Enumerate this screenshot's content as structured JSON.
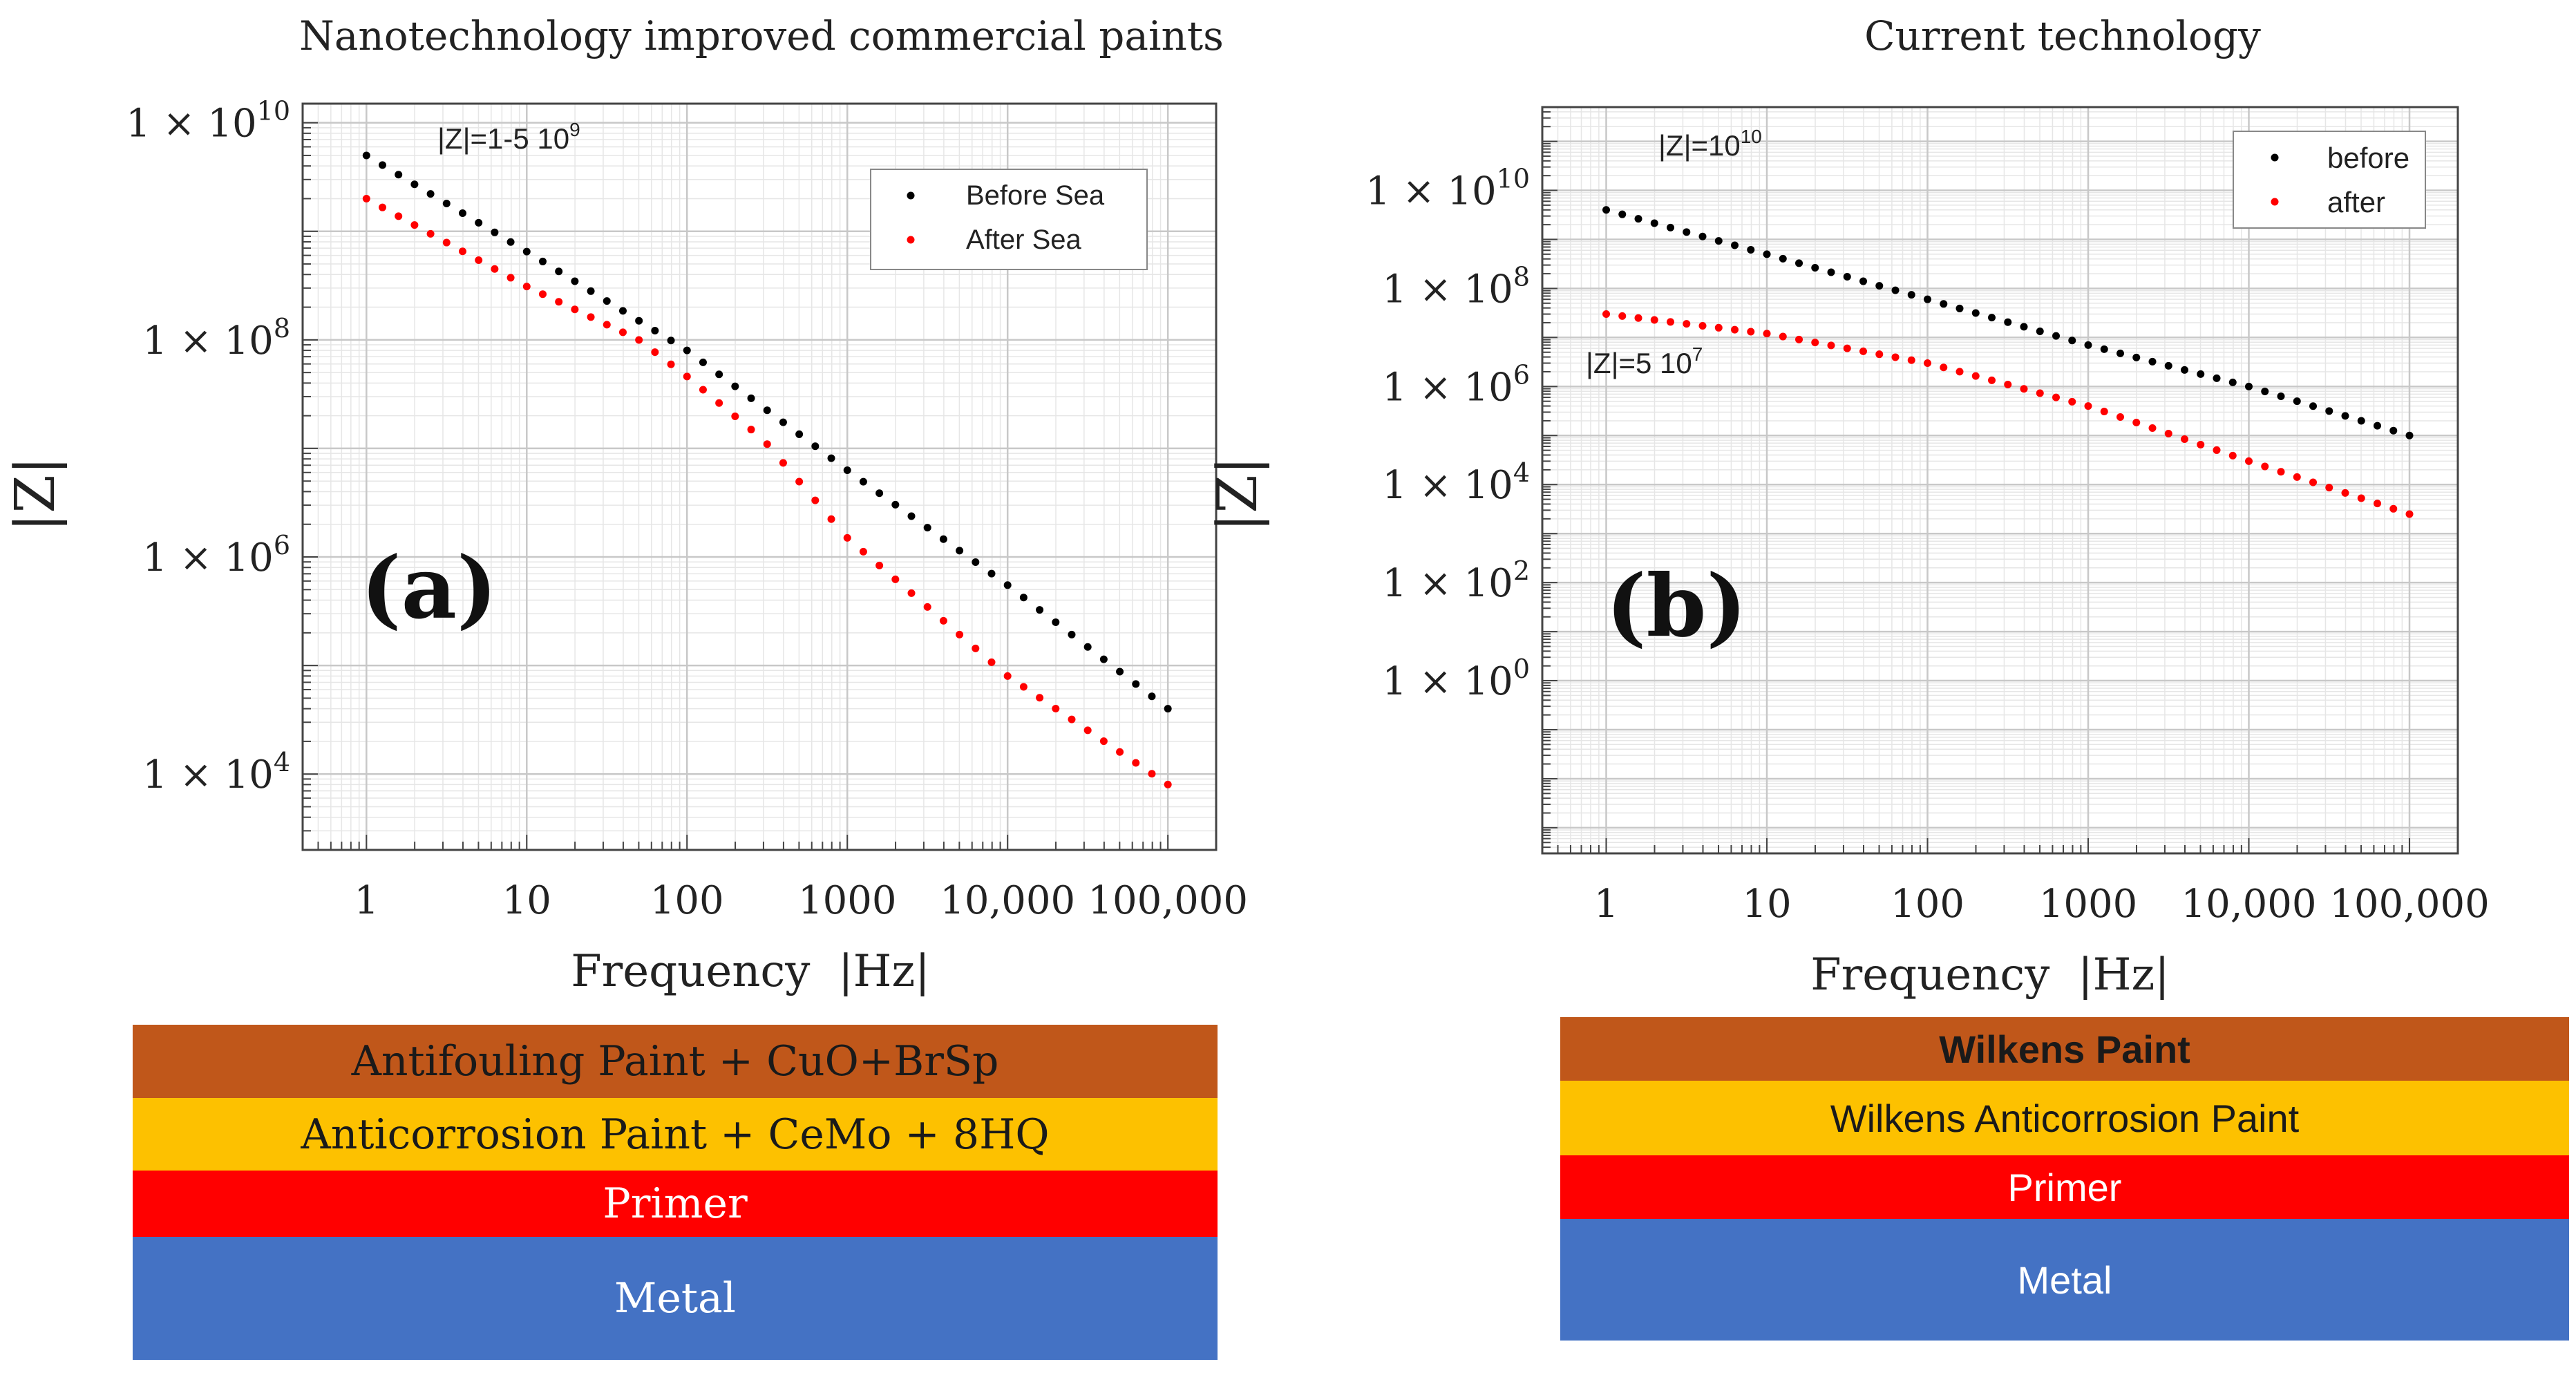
{
  "figure": {
    "panels": [
      {
        "id": "a",
        "title": "Nanotechnology improved commercial paints",
        "panel_label": "(a)",
        "annotations": [
          {
            "base": "|Z|=1-5 10",
            "sup": "9"
          }
        ],
        "layers": [
          {
            "label": "Antifouling  Paint + CuO+BrSp",
            "color": "#c0571a",
            "text_color": "#1a1a1a"
          },
          {
            "label": "Anticorrosion  Paint + CeMo + 8HQ",
            "color": "#fdc100",
            "text_color": "#1a1a1a"
          },
          {
            "label": "Primer",
            "color": "#ff0000",
            "text_color": "#ffffff"
          },
          {
            "label": "Metal",
            "color": "#4472c4",
            "text_color": "#ffffff"
          }
        ]
      },
      {
        "id": "b",
        "title": "Current technology",
        "panel_label": "(b)",
        "annotations": [
          {
            "base": "|Z|=10",
            "sup": "10"
          },
          {
            "base": "|Z|=5 10",
            "sup": "7"
          }
        ],
        "layers": [
          {
            "label": "Wilkens Paint",
            "color": "#c0571a",
            "text_color": "#1a1a1a"
          },
          {
            "label": "Wilkens Anticorrosion Paint",
            "color": "#fdc100",
            "text_color": "#1a1a1a"
          },
          {
            "label": "Primer",
            "color": "#ff0000",
            "text_color": "#ffffff"
          },
          {
            "label": "Metal",
            "color": "#4472c4",
            "text_color": "#ffffff"
          }
        ]
      }
    ]
  },
  "chart_data": [
    {
      "type": "scatter",
      "panel": "a",
      "title": "Nanotechnology improved commercial paints",
      "xlabel": "Frequency  |Hz|",
      "ylabel": "|Z|",
      "xscale": "log",
      "yscale": "log",
      "xlim": [
        0.4,
        200000
      ],
      "ylim": [
        2000,
        15000000000
      ],
      "xticks": [
        1,
        10,
        100,
        1000,
        10000,
        100000
      ],
      "xtick_labels": [
        "1",
        "10",
        "100",
        "1000",
        "10,000",
        "100,000"
      ],
      "yticks": [
        10000,
        1000000,
        100000000,
        10000000000
      ],
      "ytick_labels": [
        {
          "base": "1 × 10",
          "sup": "4"
        },
        {
          "base": "1 × 10",
          "sup": "6"
        },
        {
          "base": "1 × 10",
          "sup": "8"
        },
        {
          "base": "1 × 10",
          "sup": "10"
        }
      ],
      "grid": true,
      "legend_position": "top-right",
      "series": [
        {
          "name": "Before Sea",
          "color": "#000000",
          "x_range": [
            1,
            100000
          ],
          "points": [
            [
              1,
              5000000000
            ],
            [
              10,
              650000000
            ],
            [
              100,
              80000000
            ],
            [
              1000,
              6300000
            ],
            [
              10000,
              550000
            ],
            [
              100000,
              40000
            ]
          ]
        },
        {
          "name": "After Sea",
          "color": "#ff0000",
          "x_range": [
            1,
            100000
          ],
          "points": [
            [
              1,
              2000000000
            ],
            [
              10,
              310000000
            ],
            [
              50,
              100000000
            ],
            [
              100,
              46000000
            ],
            [
              300,
              12000000
            ],
            [
              1000,
              1500000
            ],
            [
              10000,
              80000
            ],
            [
              100000,
              8000
            ]
          ]
        }
      ]
    },
    {
      "type": "scatter",
      "panel": "b",
      "title": "Current technology",
      "xlabel": "Frequency  |Hz|",
      "ylabel": "|Z|",
      "xscale": "log",
      "yscale": "log",
      "xlim": [
        0.4,
        200000
      ],
      "ylim": [
        0.0003,
        500000000000
      ],
      "xticks": [
        1,
        10,
        100,
        1000,
        10000,
        100000
      ],
      "xtick_labels": [
        "1",
        "10",
        "100",
        "1000",
        "10,000",
        "100,000"
      ],
      "yticks": [
        1,
        100,
        10000,
        1000000,
        100000000,
        10000000000
      ],
      "ytick_labels": [
        {
          "base": "1 × 10",
          "sup": "0"
        },
        {
          "base": "1 × 10",
          "sup": "2"
        },
        {
          "base": "1 × 10",
          "sup": "4"
        },
        {
          "base": "1 × 10",
          "sup": "6"
        },
        {
          "base": "1 × 10",
          "sup": "8"
        },
        {
          "base": "1 × 10",
          "sup": "10"
        }
      ],
      "grid": true,
      "legend_position": "top-right",
      "series": [
        {
          "name": "before",
          "color": "#000000",
          "x_range": [
            1,
            100000
          ],
          "points": [
            [
              1,
              4000000000
            ],
            [
              10,
              500000000
            ],
            [
              100,
              60000000
            ],
            [
              1000,
              7000000
            ],
            [
              10000,
              1000000
            ],
            [
              100000,
              100000
            ]
          ]
        },
        {
          "name": "after",
          "color": "#ff0000",
          "x_range": [
            1,
            100000
          ],
          "points": [
            [
              1,
              30000000
            ],
            [
              10,
              12000000
            ],
            [
              100,
              3000000
            ],
            [
              1000,
              400000
            ],
            [
              10000,
              30000
            ],
            [
              100000,
              2500
            ]
          ]
        }
      ]
    }
  ]
}
